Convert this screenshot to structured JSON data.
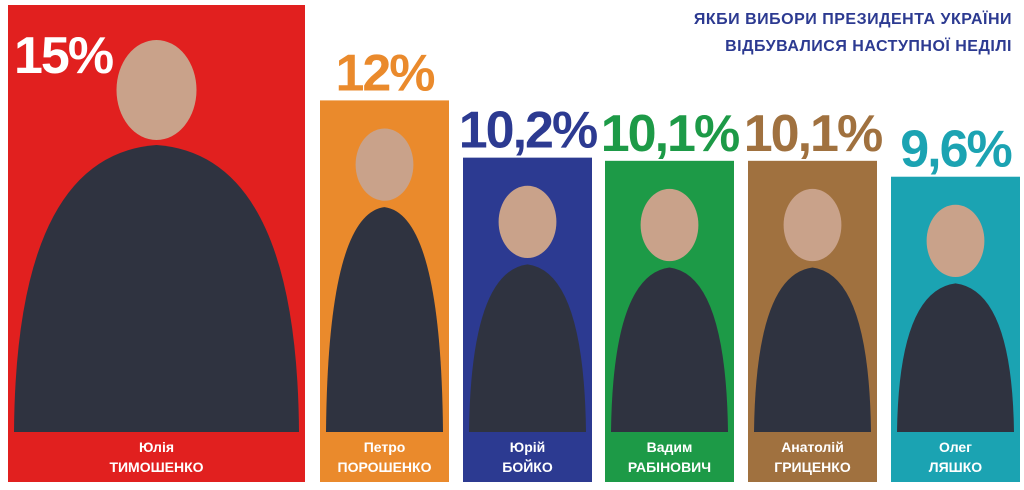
{
  "chart_data": {
    "type": "bar",
    "title": "ЯКБИ ВИБОРИ ПРЕЗИДЕНТА УКРАЇНИ ВІДБУВАЛИСЯ НАСТУПНОЇ НЕДІЛІ",
    "categories": [
      [
        "Юлія",
        "ТИМОШЕНКО"
      ],
      [
        "Петро",
        "ПОРОШЕНКО"
      ],
      [
        "Юрій",
        "БОЙКО"
      ],
      [
        "Вадим",
        "РАБІНОВИЧ"
      ],
      [
        "Анатолій",
        "ГРИЦЕНКО"
      ],
      [
        "Олег",
        "ЛЯШКО"
      ]
    ],
    "values": [
      15,
      12,
      10.2,
      10.1,
      10.1,
      9.6
    ],
    "value_labels": [
      "15%",
      "12%",
      "10,2%",
      "10,1%",
      "10,1%",
      "9,6%"
    ],
    "colors": [
      "#e1201f",
      "#ea8a2c",
      "#2c3a91",
      "#1d9a47",
      "#a0713f",
      "#1ba3b2"
    ]
  }
}
